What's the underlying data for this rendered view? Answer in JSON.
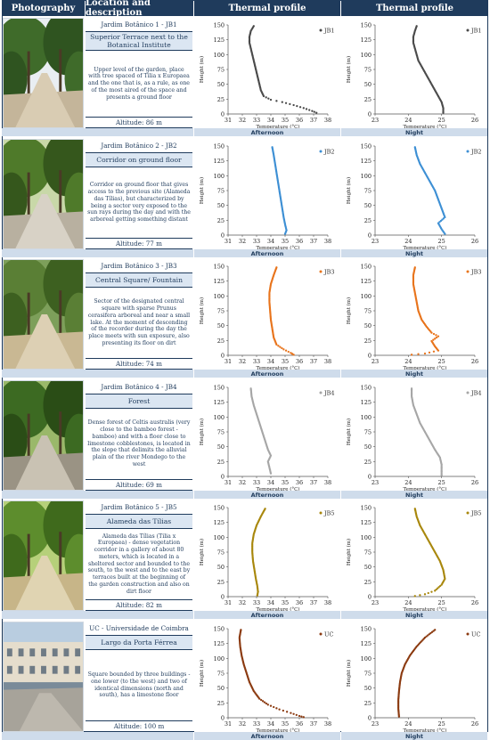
{
  "headers": {
    "photography": "Photography",
    "location": "Location and description",
    "thermal1": "Thermal profile",
    "thermal2": "Thermal profile"
  },
  "band_labels": {
    "afternoon": "Afternoon",
    "night": "Night"
  },
  "axis": {
    "ylabel": "Height (m)",
    "xlabel": "Temperature (°C)",
    "yticks": [
      0,
      25,
      50,
      75,
      100,
      125,
      150
    ]
  },
  "colors": {
    "header": "#1f3b5c",
    "band": "#cfdceb"
  },
  "sites": [
    {
      "title": "Jardim Botânico 1 - JB1",
      "subtitle": "Superior Terrace next to the Botanical Institute",
      "description": "Upper level of the garden, place with tree spaced of Tilia x Europaea and the one that is, as a rule, as one of the most aired of the space and presents a ground floor",
      "altitude": "Altitude: 86 m",
      "photo": "terrace-trees",
      "series_name": "JB1",
      "color": "#4a4a4a",
      "afternoon": {
        "xticks": [
          31,
          32,
          33,
          34,
          35,
          36,
          37,
          38
        ],
        "xlim": [
          31,
          38
        ],
        "points": [
          [
            32.8,
            148
          ],
          [
            32.6,
            140
          ],
          [
            32.5,
            130
          ],
          [
            32.5,
            120
          ],
          [
            32.6,
            110
          ],
          [
            32.7,
            100
          ],
          [
            32.8,
            90
          ],
          [
            32.9,
            80
          ],
          [
            33.0,
            70
          ],
          [
            33.1,
            60
          ],
          [
            33.2,
            50
          ],
          [
            33.3,
            40
          ],
          [
            33.5,
            30
          ],
          [
            34.0,
            24
          ],
          [
            34.8,
            20
          ],
          [
            35.6,
            15
          ],
          [
            36.3,
            10
          ],
          [
            36.9,
            5
          ],
          [
            37.2,
            2
          ]
        ]
      },
      "night": {
        "xticks": [
          23,
          24,
          25,
          26
        ],
        "xlim": [
          23,
          26
        ],
        "points": [
          [
            24.25,
            148
          ],
          [
            24.2,
            140
          ],
          [
            24.15,
            130
          ],
          [
            24.15,
            120
          ],
          [
            24.2,
            110
          ],
          [
            24.25,
            100
          ],
          [
            24.3,
            90
          ],
          [
            24.4,
            80
          ],
          [
            24.5,
            70
          ],
          [
            24.6,
            60
          ],
          [
            24.7,
            50
          ],
          [
            24.8,
            40
          ],
          [
            24.9,
            30
          ],
          [
            25.0,
            20
          ],
          [
            25.05,
            10
          ],
          [
            25.05,
            2
          ]
        ]
      }
    },
    {
      "title": "Jardim Botânico 2 - JB2",
      "subtitle": "Corridor on ground floor",
      "description": "Corridor on ground floor that gives access to the previous site (Alameda das Tílias), but characterized by being a sector very exposed to the sun rays during the day and with the arboreal getting something distant",
      "altitude": "Altitude: 77 m",
      "photo": "corridor",
      "series_name": "JB2",
      "color": "#3d8fd4",
      "afternoon": {
        "xticks": [
          31,
          32,
          33,
          34,
          35,
          36,
          37,
          38
        ],
        "xlim": [
          31,
          38
        ],
        "points": [
          [
            34.1,
            148
          ],
          [
            34.2,
            135
          ],
          [
            34.3,
            120
          ],
          [
            34.4,
            105
          ],
          [
            34.5,
            90
          ],
          [
            34.6,
            75
          ],
          [
            34.7,
            60
          ],
          [
            34.8,
            45
          ],
          [
            34.9,
            30
          ],
          [
            35.0,
            18
          ],
          [
            35.1,
            8
          ],
          [
            35.0,
            2
          ]
        ]
      },
      "night": {
        "xticks": [
          23,
          24,
          25,
          26
        ],
        "xlim": [
          23,
          26
        ],
        "points": [
          [
            24.2,
            148
          ],
          [
            24.25,
            135
          ],
          [
            24.35,
            120
          ],
          [
            24.5,
            105
          ],
          [
            24.65,
            90
          ],
          [
            24.8,
            75
          ],
          [
            24.9,
            60
          ],
          [
            25.0,
            45
          ],
          [
            25.1,
            30
          ],
          [
            24.9,
            20
          ],
          [
            25.0,
            10
          ],
          [
            25.1,
            2
          ]
        ]
      }
    },
    {
      "title": "Jardim Botânico 3 - JB3",
      "subtitle": "Central Square/ Fountain",
      "description": "Sector of the designated central square with sparse Prunus cerasifera arboreal and near a small lake. At the moment of descending of the recorder during the day the place meets with sun exposure, also presenting its floor on dirt",
      "altitude": "Altitude: 74 m",
      "photo": "fountain",
      "series_name": "JB3",
      "color": "#e8741c",
      "afternoon": {
        "xticks": [
          31,
          32,
          33,
          34,
          35,
          36,
          37,
          38
        ],
        "xlim": [
          31,
          38
        ],
        "points": [
          [
            34.4,
            148
          ],
          [
            34.2,
            135
          ],
          [
            34.0,
            120
          ],
          [
            33.9,
            105
          ],
          [
            33.9,
            90
          ],
          [
            33.95,
            75
          ],
          [
            34.0,
            60
          ],
          [
            34.1,
            45
          ],
          [
            34.2,
            30
          ],
          [
            34.4,
            18
          ],
          [
            34.9,
            10
          ],
          [
            35.4,
            4
          ],
          [
            35.6,
            1
          ]
        ]
      },
      "night": {
        "xticks": [
          23,
          24,
          25,
          26
        ],
        "xlim": [
          23,
          26
        ],
        "points": [
          [
            24.2,
            148
          ],
          [
            24.15,
            135
          ],
          [
            24.15,
            120
          ],
          [
            24.2,
            105
          ],
          [
            24.25,
            90
          ],
          [
            24.3,
            75
          ],
          [
            24.4,
            60
          ],
          [
            24.55,
            48
          ],
          [
            24.7,
            38
          ],
          [
            24.9,
            32
          ],
          [
            24.7,
            24
          ],
          [
            24.8,
            15
          ],
          [
            24.9,
            8
          ],
          [
            24.5,
            3
          ],
          [
            24.1,
            1
          ]
        ]
      }
    },
    {
      "title": "Jardim Botânico 4 - JB4",
      "subtitle": "Forest",
      "description": "Dense forest of Celtis australis (very close to the bamboo forest - bamboo) and with a floor close to limestone cobblestones, is located in the slope that delimits the alluvial plain of the river Mondego to the west",
      "altitude": "Altitude: 69 m",
      "photo": "forest",
      "series_name": "JB4",
      "color": "#a6a6a6",
      "afternoon": {
        "xticks": [
          31,
          32,
          33,
          34,
          35,
          36,
          37,
          38
        ],
        "xlim": [
          31,
          38
        ],
        "points": [
          [
            32.6,
            148
          ],
          [
            32.65,
            135
          ],
          [
            32.8,
            120
          ],
          [
            33.0,
            105
          ],
          [
            33.2,
            90
          ],
          [
            33.4,
            75
          ],
          [
            33.6,
            60
          ],
          [
            33.8,
            45
          ],
          [
            34.0,
            35
          ],
          [
            33.8,
            25
          ],
          [
            33.9,
            15
          ],
          [
            34.0,
            5
          ]
        ]
      },
      "night": {
        "xticks": [
          23,
          24,
          25,
          26
        ],
        "xlim": [
          23,
          26
        ],
        "points": [
          [
            24.1,
            148
          ],
          [
            24.1,
            135
          ],
          [
            24.15,
            120
          ],
          [
            24.25,
            105
          ],
          [
            24.35,
            90
          ],
          [
            24.5,
            75
          ],
          [
            24.65,
            60
          ],
          [
            24.8,
            45
          ],
          [
            24.95,
            32
          ],
          [
            25.0,
            20
          ],
          [
            25.0,
            10
          ],
          [
            25.0,
            2
          ]
        ]
      }
    },
    {
      "title": "Jardim Botânico 5 - JB5",
      "subtitle": "Alameda das Tílias",
      "description": "Alameda das Tílias (Tilia x Europaea) - dense vegetation corridor in a gallery of about 80 meters, which is located in a sheltered sector and bounded to the south, to the west and to the east by terraces built at the beginning of the garden construction and also on dirt floor",
      "altitude": "Altitude: 82 m",
      "photo": "alameda",
      "series_name": "JB5",
      "color": "#a8870c",
      "afternoon": {
        "xticks": [
          31,
          32,
          33,
          34,
          35,
          36,
          37,
          38
        ],
        "xlim": [
          31,
          38
        ],
        "points": [
          [
            33.6,
            148
          ],
          [
            33.3,
            135
          ],
          [
            33.0,
            120
          ],
          [
            32.8,
            105
          ],
          [
            32.7,
            90
          ],
          [
            32.7,
            75
          ],
          [
            32.75,
            60
          ],
          [
            32.85,
            45
          ],
          [
            32.95,
            30
          ],
          [
            33.05,
            18
          ],
          [
            33.1,
            8
          ],
          [
            33.05,
            2
          ]
        ]
      },
      "night": {
        "xticks": [
          23,
          24,
          25,
          26
        ],
        "xlim": [
          23,
          26
        ],
        "points": [
          [
            24.2,
            148
          ],
          [
            24.25,
            135
          ],
          [
            24.35,
            120
          ],
          [
            24.5,
            105
          ],
          [
            24.65,
            90
          ],
          [
            24.8,
            75
          ],
          [
            24.95,
            60
          ],
          [
            25.05,
            45
          ],
          [
            25.1,
            30
          ],
          [
            25.0,
            20
          ],
          [
            24.8,
            10
          ],
          [
            24.5,
            4
          ],
          [
            24.2,
            1
          ]
        ]
      }
    },
    {
      "title": "UC - Universidade de Coimbra",
      "subtitle": "Largo da Porta Férrea",
      "description": "Square bounded by three buildings - one lower (to the west) and two of identical dimensions (north and south), has a limestone floor",
      "altitude": "Altitude: 100 m",
      "photo": "university",
      "series_name": "UC",
      "color": "#8b3a10",
      "afternoon": {
        "xticks": [
          31,
          32,
          33,
          34,
          35,
          36,
          37,
          38
        ],
        "xlim": [
          31,
          38
        ],
        "points": [
          [
            31.9,
            148
          ],
          [
            31.8,
            135
          ],
          [
            31.85,
            120
          ],
          [
            31.95,
            105
          ],
          [
            32.1,
            90
          ],
          [
            32.3,
            75
          ],
          [
            32.5,
            60
          ],
          [
            32.8,
            45
          ],
          [
            33.2,
            32
          ],
          [
            33.8,
            22
          ],
          [
            34.6,
            14
          ],
          [
            35.4,
            8
          ],
          [
            36.0,
            3
          ],
          [
            36.3,
            1
          ]
        ]
      },
      "night": {
        "xticks": [
          23,
          24,
          25,
          26
        ],
        "xlim": [
          23,
          26
        ],
        "points": [
          [
            24.8,
            148
          ],
          [
            24.5,
            135
          ],
          [
            24.25,
            120
          ],
          [
            24.05,
            105
          ],
          [
            23.9,
            90
          ],
          [
            23.8,
            75
          ],
          [
            23.75,
            60
          ],
          [
            23.72,
            45
          ],
          [
            23.7,
            30
          ],
          [
            23.7,
            15
          ],
          [
            23.72,
            2
          ]
        ]
      }
    }
  ]
}
